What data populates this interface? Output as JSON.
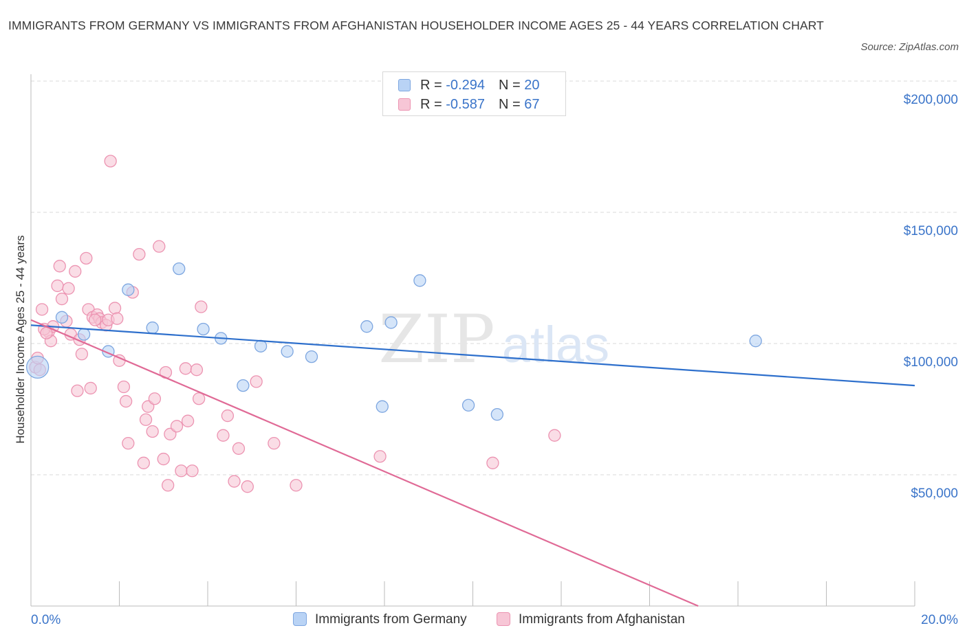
{
  "title": "IMMIGRANTS FROM GERMANY VS IMMIGRANTS FROM AFGHANISTAN HOUSEHOLDER INCOME AGES 25 - 44 YEARS CORRELATION CHART",
  "source": "Source: ZipAtlas.com",
  "watermark": {
    "zip": "ZIP",
    "atlas": "atlas"
  },
  "legend": {
    "germany": {
      "r_label": "R = ",
      "r_value": "-0.294",
      "n_label": "N = ",
      "n_value": "20"
    },
    "afghanistan": {
      "r_label": "R = ",
      "r_value": "-0.587",
      "n_label": "N = ",
      "n_value": "67"
    }
  },
  "colors": {
    "germany_fill": "#b9d3f5",
    "germany_stroke": "#7da6e0",
    "germany_line": "#2d6fcc",
    "afghanistan_fill": "#f7c6d6",
    "afghanistan_stroke": "#ec93b1",
    "afghanistan_line": "#e06a96",
    "axis_label": "#3a74c9",
    "grid": "#d9d9d9"
  },
  "chart_data": {
    "type": "scatter",
    "title": "IMMIGRANTS FROM GERMANY VS IMMIGRANTS FROM AFGHANISTAN HOUSEHOLDER INCOME AGES 25 - 44 YEARS CORRELATION CHART",
    "xlabel": "",
    "ylabel": "Householder Income Ages 25 - 44 years",
    "xlim": [
      0,
      20
    ],
    "ylim": [
      0,
      200000
    ],
    "x_tick_labels": [
      "0.0%",
      "20.0%"
    ],
    "y_ticks": [
      50000,
      100000,
      150000,
      200000
    ],
    "y_tick_labels": [
      "$50,000",
      "$100,000",
      "$150,000",
      "$200,000"
    ],
    "grid": "horizontal dashed",
    "legend_position": "top-center and bottom",
    "series": [
      {
        "name": "Immigrants from Germany",
        "points": [
          {
            "x": 0.15,
            "y": 91000,
            "big": true
          },
          {
            "x": 0.7,
            "y": 110000
          },
          {
            "x": 1.2,
            "y": 103500
          },
          {
            "x": 1.75,
            "y": 97000
          },
          {
            "x": 2.2,
            "y": 120500
          },
          {
            "x": 2.75,
            "y": 106000
          },
          {
            "x": 3.35,
            "y": 128500
          },
          {
            "x": 3.9,
            "y": 105500
          },
          {
            "x": 4.3,
            "y": 102000
          },
          {
            "x": 4.8,
            "y": 84000
          },
          {
            "x": 5.2,
            "y": 99000
          },
          {
            "x": 5.8,
            "y": 97000
          },
          {
            "x": 6.35,
            "y": 95000
          },
          {
            "x": 7.6,
            "y": 106500
          },
          {
            "x": 7.95,
            "y": 76000
          },
          {
            "x": 8.15,
            "y": 108000
          },
          {
            "x": 8.8,
            "y": 124000
          },
          {
            "x": 9.9,
            "y": 76500
          },
          {
            "x": 10.55,
            "y": 73000
          },
          {
            "x": 16.4,
            "y": 101000
          }
        ],
        "trend": {
          "x": [
            0,
            20
          ],
          "y": [
            107000,
            84000
          ]
        }
      },
      {
        "name": "Immigrants from Afghanistan",
        "points": [
          {
            "x": 0.1,
            "y": 91000
          },
          {
            "x": 0.15,
            "y": 94500
          },
          {
            "x": 0.2,
            "y": 90000
          },
          {
            "x": 0.25,
            "y": 113000
          },
          {
            "x": 0.4,
            "y": 104500
          },
          {
            "x": 0.45,
            "y": 101000
          },
          {
            "x": 0.5,
            "y": 106500
          },
          {
            "x": 0.6,
            "y": 122000
          },
          {
            "x": 0.65,
            "y": 129500
          },
          {
            "x": 0.7,
            "y": 117000
          },
          {
            "x": 0.8,
            "y": 108500
          },
          {
            "x": 0.85,
            "y": 121000
          },
          {
            "x": 0.9,
            "y": 103500
          },
          {
            "x": 1.0,
            "y": 127500
          },
          {
            "x": 1.05,
            "y": 82000
          },
          {
            "x": 1.1,
            "y": 101500
          },
          {
            "x": 1.15,
            "y": 96000
          },
          {
            "x": 1.25,
            "y": 132500
          },
          {
            "x": 1.3,
            "y": 113000
          },
          {
            "x": 1.35,
            "y": 83000
          },
          {
            "x": 1.4,
            "y": 110000
          },
          {
            "x": 1.5,
            "y": 111000
          },
          {
            "x": 1.55,
            "y": 109500
          },
          {
            "x": 1.6,
            "y": 108000
          },
          {
            "x": 1.7,
            "y": 107000
          },
          {
            "x": 1.75,
            "y": 109000
          },
          {
            "x": 1.8,
            "y": 169500
          },
          {
            "x": 1.9,
            "y": 113500
          },
          {
            "x": 1.95,
            "y": 109500
          },
          {
            "x": 2.0,
            "y": 93500
          },
          {
            "x": 2.1,
            "y": 83500
          },
          {
            "x": 2.15,
            "y": 78000
          },
          {
            "x": 2.2,
            "y": 62000
          },
          {
            "x": 2.3,
            "y": 119500
          },
          {
            "x": 2.45,
            "y": 134000
          },
          {
            "x": 2.55,
            "y": 54500
          },
          {
            "x": 2.6,
            "y": 71000
          },
          {
            "x": 2.65,
            "y": 76000
          },
          {
            "x": 2.75,
            "y": 66500
          },
          {
            "x": 2.8,
            "y": 79000
          },
          {
            "x": 2.9,
            "y": 137000
          },
          {
            "x": 3.0,
            "y": 56000
          },
          {
            "x": 3.05,
            "y": 89000
          },
          {
            "x": 3.1,
            "y": 46000
          },
          {
            "x": 3.15,
            "y": 65500
          },
          {
            "x": 3.3,
            "y": 68500
          },
          {
            "x": 3.4,
            "y": 51500
          },
          {
            "x": 3.5,
            "y": 90500
          },
          {
            "x": 3.55,
            "y": 70500
          },
          {
            "x": 3.65,
            "y": 51500
          },
          {
            "x": 3.75,
            "y": 90000
          },
          {
            "x": 3.8,
            "y": 79000
          },
          {
            "x": 3.85,
            "y": 114000
          },
          {
            "x": 4.35,
            "y": 65000
          },
          {
            "x": 4.45,
            "y": 72500
          },
          {
            "x": 4.6,
            "y": 47500
          },
          {
            "x": 4.7,
            "y": 60000
          },
          {
            "x": 4.9,
            "y": 45500
          },
          {
            "x": 5.1,
            "y": 85500
          },
          {
            "x": 5.5,
            "y": 62000
          },
          {
            "x": 6.0,
            "y": 46000
          },
          {
            "x": 7.9,
            "y": 57000
          },
          {
            "x": 10.45,
            "y": 54500
          },
          {
            "x": 11.85,
            "y": 65000
          },
          {
            "x": 0.3,
            "y": 105500
          },
          {
            "x": 0.35,
            "y": 104000
          },
          {
            "x": 1.45,
            "y": 109000
          }
        ],
        "trend": {
          "x": [
            0,
            15.1
          ],
          "y": [
            109000,
            0
          ]
        }
      }
    ]
  },
  "bottom_legend": {
    "germany_label": "Immigrants from Germany",
    "afghanistan_label": "Immigrants from Afghanistan"
  }
}
